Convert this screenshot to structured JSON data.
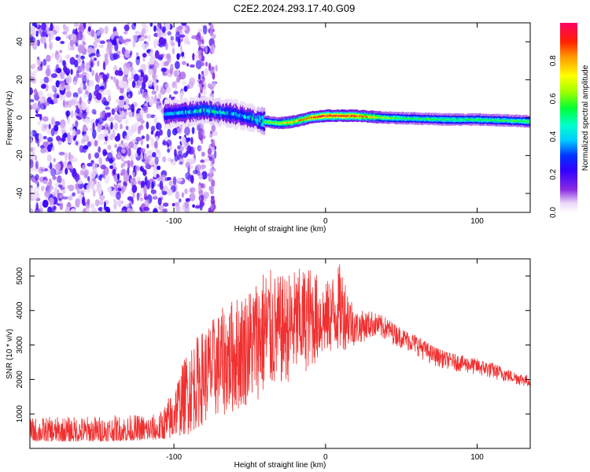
{
  "title": "C2E2.2024.293.17.40.G09",
  "chart_data": [
    {
      "type": "heatmap",
      "xlabel": "Height of straight line (km)",
      "ylabel": "Frequency (Hz)",
      "xlim": [
        -195,
        135
      ],
      "ylim": [
        -50,
        50
      ],
      "xticks": [
        -100,
        0,
        100
      ],
      "yticks": [
        -40,
        -20,
        0,
        20,
        40
      ],
      "colorbar": {
        "label": "Normalized spectral amplitude",
        "range": [
          0,
          1
        ],
        "ticks": [
          "0.0",
          "0.2",
          "0.4",
          "0.6",
          "0.8"
        ]
      },
      "ridge": {
        "x": [
          -105,
          -90,
          -80,
          -70,
          -60,
          -50,
          -40,
          -30,
          -20,
          -10,
          0,
          20,
          40,
          60,
          80,
          100,
          120,
          135
        ],
        "freq": [
          2,
          3,
          4,
          3,
          2,
          0,
          -2,
          -3,
          -2,
          0,
          1,
          1,
          0,
          -0.5,
          -1,
          -1,
          -1.5,
          -2
        ],
        "amplitude": [
          0.3,
          0.35,
          0.4,
          0.4,
          0.35,
          0.35,
          0.6,
          0.7,
          0.8,
          0.9,
          1.0,
          0.95,
          0.6,
          0.55,
          0.55,
          0.55,
          0.55,
          0.6
        ]
      },
      "grid": false
    },
    {
      "type": "line",
      "xlabel": "Height of straight line (km)",
      "ylabel": "SNR (10 * v/v)",
      "xlim": [
        -195,
        135
      ],
      "ylim": [
        0,
        5500
      ],
      "xticks": [
        -100,
        0,
        100
      ],
      "yticks": [
        1000,
        2000,
        3000,
        4000,
        5000
      ],
      "series": [
        {
          "color": "#f03030",
          "envelope": {
            "x": [
              -195,
              -150,
              -110,
              -100,
              -90,
              -80,
              -70,
              -60,
              -50,
              -40,
              -30,
              -20,
              -10,
              0,
              10,
              20,
              30,
              40,
              50,
              60,
              70,
              80,
              90,
              100,
              110,
              120,
              135
            ],
            "low": [
              200,
              200,
              250,
              300,
              400,
              700,
              900,
              1000,
              1300,
              1500,
              1800,
              2000,
              2300,
              2700,
              2800,
              3000,
              3200,
              3100,
              2900,
              2700,
              2400,
              2300,
              2200,
              2100,
              2000,
              1900,
              1750
            ],
            "high": [
              900,
              950,
              1000,
              1800,
              3000,
              3500,
              4000,
              4400,
              4700,
              5300,
              5000,
              5200,
              5300,
              4800,
              5400,
              4000,
              4000,
              3800,
              3500,
              3300,
              3000,
              2800,
              2700,
              2600,
              2500,
              2300,
              2100
            ]
          }
        }
      ],
      "grid": false
    }
  ]
}
